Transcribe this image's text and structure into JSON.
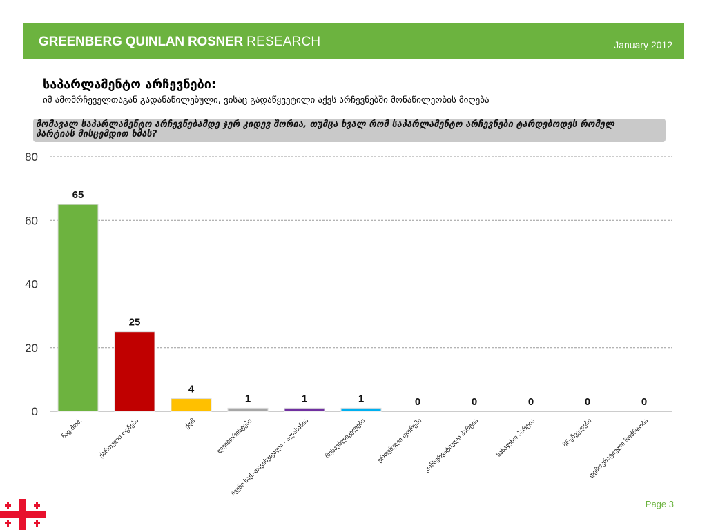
{
  "header": {
    "brand_bold": "GREENBERG QUINLAN ROSNER",
    "brand_light": "RESEARCH",
    "date": "January 2012"
  },
  "slide": {
    "title": "საპარლამენტო არჩევნები:",
    "subtitle": "იმ ამომრჩეველთაგან გადანაწილებული, ვისაც გადაწყვეტილი აქვს არჩევნებში მონაწილეობის მიღება",
    "question": "მომავალ  საპარლამენტო არჩევნებამდე  ჯერ კიდევ შორია, თუმცა ხვალ რომ საპარლამენტო არჩევნები ტარდებოდეს  რომელ პარტიას მისცემდით ხმას?"
  },
  "footer": {
    "page": "Page 3"
  },
  "colors": {
    "brand_green": "#6cb33f",
    "question_bg": "#c9c9c9"
  },
  "chart_data": {
    "type": "bar",
    "categories": [
      "ნაც.მოძ.",
      "ქართული ოცნება",
      "ქდმ",
      "ლეიბორისტები",
      "ჩვენი საქ.-თავისუფალი - ალასანია",
      "რესპუბლიკელები",
      "ეროვნული ფორუმი",
      "კონსერვატიული პარტია",
      "სახალხო პარტია",
      "მრეწველები",
      "დემოკრატიული მოძრაობა"
    ],
    "values": [
      65,
      25,
      4,
      1,
      1,
      1,
      0,
      0,
      0,
      0,
      0
    ],
    "colors": [
      "#6db33f",
      "#c00000",
      "#ffc000",
      "#a6a6a6",
      "#7030a0",
      "#00b0f0",
      "#6db33f",
      "#6db33f",
      "#6db33f",
      "#6db33f",
      "#6db33f"
    ],
    "yticks": [
      0,
      20,
      40,
      60,
      80
    ],
    "ylim": [
      0,
      80
    ],
    "grid": true,
    "xlabel": "",
    "ylabel": ""
  }
}
